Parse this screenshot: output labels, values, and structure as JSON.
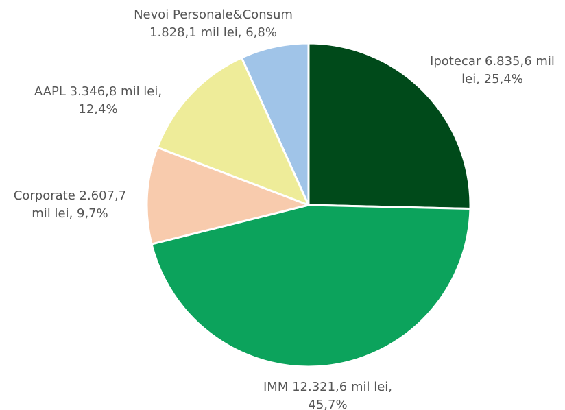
{
  "chart_data": {
    "type": "pie",
    "values": [
      6835.6,
      12321.6,
      2607.7,
      3346.8,
      1828.1
    ],
    "value_labels": [
      [
        "Ipotecar 6.835,6 mil",
        "lei, 25,4%"
      ],
      [
        "IMM 12.321,6 mil lei,",
        "45,7%"
      ],
      [
        "Corporate 2.607,7",
        "mil lei, 9,7%"
      ],
      [
        "AAPL 3.346,8 mil lei,",
        "12,4%"
      ],
      [
        "Nevoi Personale&Consum",
        "1.828,1 mil lei, 6,8%"
      ]
    ],
    "colors": [
      "#004a1a",
      "#0ca35c",
      "#f8cbad",
      "#eeec99",
      "#a0c4e8"
    ]
  }
}
